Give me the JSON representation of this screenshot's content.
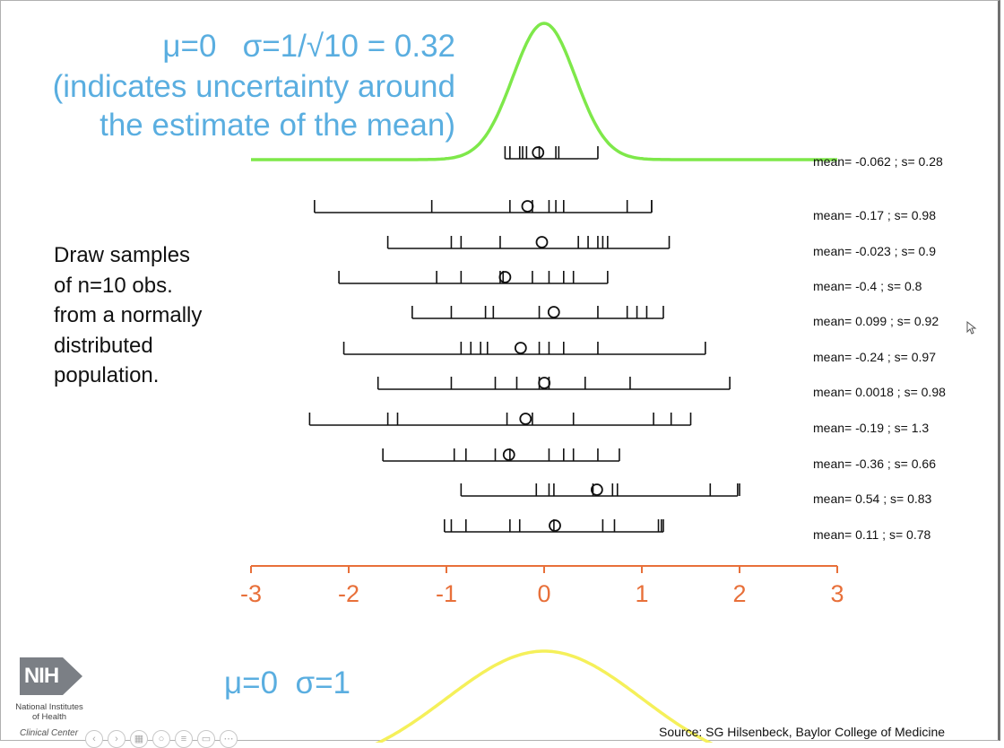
{
  "top_title": {
    "line1": "μ=0   σ=1/√10 = 0.32",
    "line2": "(indicates uncertainty around",
    "line3": "the estimate of the mean)"
  },
  "description": [
    "Draw samples",
    "of n=10 obs.",
    "from a normally",
    "distributed",
    "population."
  ],
  "bottom_title": "μ=0  σ=1",
  "source": "Source: SG Hilsenbeck, Baylor College of Medicine",
  "logo": {
    "abbr": "NIH",
    "line1": "National Institutes",
    "line2": "of Health",
    "line3": "Clinical Center"
  },
  "toolbar_icons": [
    "back-icon",
    "forward-icon",
    "slides-icon",
    "zoom-icon",
    "notes-icon",
    "camera-icon",
    "more-icon"
  ],
  "colors": {
    "title": "#5aaee0",
    "sampling_curve": "#7ee84a",
    "population_curve": "#f5f05a",
    "axis": "#e8703a"
  },
  "chart_data": {
    "type": "scatter",
    "xlim": [
      -3,
      3
    ],
    "x_ticks": [
      "-3",
      "-2",
      "-1",
      "0",
      "1",
      "2",
      "3"
    ],
    "sampling_distribution": {
      "mu": 0,
      "sigma": 0.32
    },
    "population_distribution": {
      "mu": 0,
      "sigma": 1
    },
    "samples": [
      {
        "label": "mean= -0.062 ; s= 0.28",
        "mean": -0.062,
        "range": [
          -0.4,
          0.55
        ],
        "obs": [
          -0.35,
          -0.25,
          -0.22,
          -0.18,
          -0.05,
          0.12,
          0.15
        ]
      },
      {
        "label": "mean= -0.17 ; s= 0.98",
        "mean": -0.17,
        "range": [
          -2.35,
          1.1
        ],
        "obs": [
          -1.15,
          -0.35,
          -0.12,
          0.05,
          0.12,
          0.2,
          0.85,
          1.1
        ]
      },
      {
        "label": "mean= -0.023 ; s= 0.9",
        "mean": -0.023,
        "range": [
          -1.6,
          1.28
        ],
        "obs": [
          -0.95,
          -0.85,
          -0.45,
          0.35,
          0.45,
          0.55,
          0.6,
          0.65
        ]
      },
      {
        "label": "mean= -0.4 ; s= 0.8",
        "mean": -0.4,
        "range": [
          -2.1,
          0.65
        ],
        "obs": [
          -1.1,
          -0.85,
          -0.45,
          -0.42,
          -0.12,
          0.05,
          0.2,
          0.3
        ]
      },
      {
        "label": "mean= 0.099 ; s= 0.92",
        "mean": 0.099,
        "range": [
          -1.35,
          1.22
        ],
        "obs": [
          -0.95,
          -0.6,
          -0.52,
          -0.05,
          0.55,
          0.85,
          0.95,
          1.05
        ]
      },
      {
        "label": "mean= -0.24 ; s= 0.97",
        "mean": -0.24,
        "range": [
          -2.05,
          1.65
        ],
        "obs": [
          -0.85,
          -0.75,
          -0.65,
          -0.58,
          -0.05,
          0.05,
          0.2,
          0.55
        ]
      },
      {
        "label": "mean= 0.0018 ; s= 0.98",
        "mean": 0.0018,
        "range": [
          -1.7,
          1.9
        ],
        "obs": [
          -0.95,
          -0.5,
          -0.28,
          -0.05,
          0.05,
          0.42,
          0.88
        ]
      },
      {
        "label": "mean= -0.19 ; s= 1.3",
        "mean": -0.19,
        "range": [
          -2.4,
          1.5
        ],
        "obs": [
          -1.6,
          -1.5,
          -0.38,
          -0.12,
          0.3,
          1.12,
          1.3
        ]
      },
      {
        "label": "mean= -0.36 ; s= 0.66",
        "mean": -0.36,
        "range": [
          -1.65,
          0.77
        ],
        "obs": [
          -0.92,
          -0.8,
          -0.5,
          -0.35,
          0.05,
          0.2,
          0.3,
          0.55
        ]
      },
      {
        "label": "mean= 0.54 ; s= 0.83",
        "mean": 0.54,
        "range": [
          -0.85,
          1.98
        ],
        "obs": [
          -0.08,
          0.05,
          0.1,
          0.5,
          0.7,
          0.75,
          1.7,
          2.0
        ]
      },
      {
        "label": "mean= 0.11 ; s= 0.78",
        "mean": 0.11,
        "range": [
          -1.02,
          1.22
        ],
        "obs": [
          -0.95,
          -0.8,
          -0.35,
          -0.25,
          0.1,
          0.6,
          0.72,
          1.2,
          1.17
        ]
      }
    ]
  }
}
